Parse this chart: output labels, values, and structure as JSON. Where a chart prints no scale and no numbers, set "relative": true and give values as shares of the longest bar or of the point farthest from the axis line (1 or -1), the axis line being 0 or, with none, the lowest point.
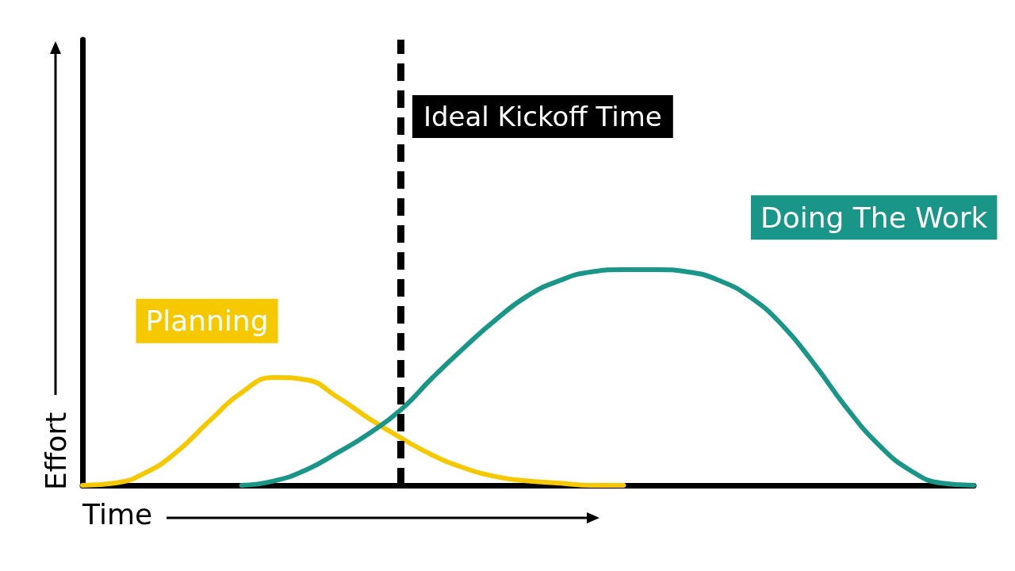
{
  "chart_data": {
    "type": "line",
    "relative": true,
    "xlabel": "Time",
    "ylabel": "Effort",
    "legend": false,
    "grid": false,
    "marker": "none",
    "line_style": "solid",
    "categories": [
      null,
      null,
      null,
      null,
      null,
      null,
      null,
      null,
      null,
      null,
      null,
      null,
      null,
      null,
      null,
      null,
      null,
      null,
      null,
      null,
      null,
      null,
      null,
      null,
      null,
      null,
      null,
      null,
      null
    ],
    "series": [
      {
        "name": "Planning",
        "color": "#f5c800",
        "values": [
          0,
          0.01,
          0.06,
          0.16,
          0.3,
          0.43,
          0.5,
          0.49,
          0.41,
          0.31,
          0.22,
          0.14,
          0.08,
          0.04,
          0.02,
          0.01,
          0,
          0,
          null,
          null,
          null,
          null,
          null,
          null,
          null,
          null,
          null,
          null,
          null
        ]
      },
      {
        "name": "Doing The Work",
        "color": "#1a9688",
        "values": [
          null,
          null,
          null,
          null,
          null,
          0,
          0.02,
          0.07,
          0.15,
          0.24,
          0.35,
          0.5,
          0.64,
          0.77,
          0.88,
          0.95,
          0.99,
          1,
          1,
          0.99,
          0.95,
          0.87,
          0.74,
          0.56,
          0.36,
          0.19,
          0.07,
          0.01,
          0
        ]
      }
    ],
    "annotations": [
      "Ideal Kickoff Time"
    ]
  }
}
